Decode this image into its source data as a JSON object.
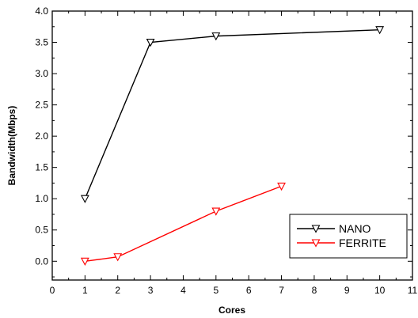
{
  "chart_data": {
    "type": "line",
    "xlabel": "Cores",
    "ylabel": "Bandwidth(Mbps)",
    "xlim": [
      0,
      11
    ],
    "ylim": [
      -0.3,
      4.0
    ],
    "x_ticks": [
      "0",
      "1",
      "2",
      "3",
      "4",
      "5",
      "6",
      "7",
      "8",
      "9",
      "10",
      "11"
    ],
    "y_ticks": [
      "0.0",
      "0.5",
      "1.0",
      "1.5",
      "2.0",
      "2.5",
      "3.0",
      "3.5",
      "4.0"
    ],
    "grid": false,
    "legend_position": "bottom-right",
    "series": [
      {
        "name": "NANO",
        "color": "#000000",
        "marker": "down-triangle",
        "x": [
          1,
          3,
          5,
          10
        ],
        "y": [
          1.0,
          3.5,
          3.6,
          3.7
        ]
      },
      {
        "name": "FERRITE",
        "color": "#ff0000",
        "marker": "down-triangle",
        "x": [
          1,
          2,
          5,
          7
        ],
        "y": [
          0.0,
          0.07,
          0.8,
          1.2
        ]
      }
    ]
  }
}
